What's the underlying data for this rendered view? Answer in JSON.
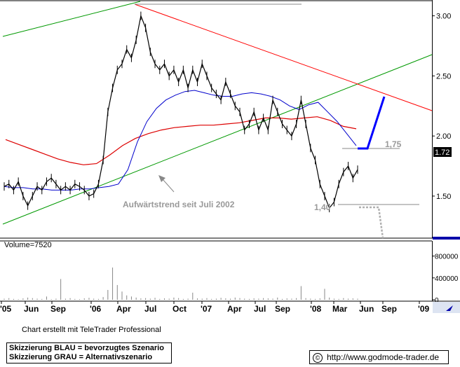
{
  "chart_data": {
    "type": "line",
    "price_axis": {
      "ticks": [
        "1.50",
        "2.00",
        "2.50",
        "3.00"
      ],
      "min": 1.15,
      "max": 3.12
    },
    "volume_label": "Volume=7520",
    "volume_axis": {
      "ticks": [
        "0",
        "400000",
        "800000"
      ],
      "max": 1000000
    },
    "x_tick_labels": [
      "'05",
      "Jun",
      "Sep",
      "'06",
      "Apr",
      "Jul",
      "Oct",
      "'07",
      "Apr",
      "Jul",
      "Sep",
      "'08",
      "Mar",
      "Jun",
      "Sep",
      "'09"
    ],
    "annotations": {
      "trend_text": "Aufwärtstrend seit Juli 2002",
      "level_high": "1,75",
      "level_low": "1,40",
      "current_price": "1.72"
    },
    "price_series": [
      1.58,
      1.6,
      1.55,
      1.62,
      1.5,
      1.42,
      1.5,
      1.58,
      1.55,
      1.62,
      1.65,
      1.6,
      1.55,
      1.58,
      1.55,
      1.6,
      1.58,
      1.55,
      1.5,
      1.52,
      1.6,
      1.8,
      2.2,
      2.4,
      2.55,
      2.6,
      2.72,
      2.65,
      2.8,
      3.0,
      2.9,
      2.7,
      2.6,
      2.55,
      2.6,
      2.5,
      2.55,
      2.45,
      2.55,
      2.4,
      2.55,
      2.45,
      2.6,
      2.5,
      2.4,
      2.35,
      2.3,
      2.45,
      2.35,
      2.25,
      2.2,
      2.05,
      2.1,
      2.2,
      2.05,
      2.15,
      2.05,
      2.3,
      2.2,
      2.1,
      2.05,
      2.0,
      2.1,
      2.3,
      2.1,
      1.9,
      1.8,
      1.6,
      1.5,
      1.4,
      1.45,
      1.6,
      1.7,
      1.75,
      1.65,
      1.72
    ],
    "ma_blue": [
      1.58,
      1.57,
      1.57,
      1.56,
      1.56,
      1.55,
      1.55,
      1.55,
      1.56,
      1.56,
      1.57,
      1.58,
      1.6,
      1.72,
      1.95,
      2.12,
      2.23,
      2.3,
      2.34,
      2.37,
      2.38,
      2.36,
      2.34,
      2.33,
      2.33,
      2.35,
      2.36,
      2.35,
      2.33,
      2.3,
      2.25,
      2.22,
      2.26,
      2.28,
      2.2,
      2.12,
      2.02,
      1.92
    ],
    "ma_red": [
      1.97,
      1.93,
      1.89,
      1.85,
      1.81,
      1.78,
      1.76,
      1.77,
      1.84,
      1.92,
      1.98,
      2.02,
      2.05,
      2.07,
      2.08,
      2.09,
      2.09,
      2.1,
      2.11,
      2.13,
      2.15,
      2.15,
      2.14,
      2.15,
      2.16,
      2.13,
      2.08,
      2.06
    ],
    "volume_series": [
      20,
      30,
      15,
      10,
      25,
      40,
      30,
      20,
      15,
      60,
      10,
      20,
      380,
      20,
      30,
      15,
      10,
      25,
      35,
      20,
      15,
      50,
      180,
      590,
      270,
      150,
      80,
      60,
      40,
      25,
      30,
      20,
      35,
      15,
      25,
      20,
      40,
      30,
      15,
      20,
      130,
      25,
      20,
      30,
      15,
      20,
      35,
      25,
      20,
      40,
      30,
      20,
      15,
      25,
      20,
      30,
      25,
      20,
      40,
      15,
      25,
      20,
      30,
      250,
      30,
      20,
      15,
      25,
      200,
      40,
      20,
      15,
      30,
      20,
      25,
      20
    ],
    "scenario_blue": [
      [
        "2008-05",
        1.75
      ],
      [
        "2008-06",
        1.75
      ],
      [
        "2008-08",
        2.15
      ]
    ],
    "scenario_grey": [
      [
        "2008-05",
        1.4
      ],
      [
        "2008-06",
        1.4
      ],
      [
        "2008-08",
        1.1
      ]
    ]
  },
  "colors": {
    "uptrend": "#009900",
    "downtrend": "#ff0000",
    "ma_short": "#0000cc",
    "ma_long": "#dd0000",
    "scenario_blue": "#0000ff",
    "scenario_grey": "#b0b0b0",
    "price": "#000000"
  },
  "footer": {
    "credit": "Chart erstellt mit TeleTrader Professional",
    "legend_blue": "Skizzierung BLAU = bevorzugtes Szenario",
    "legend_grey": "Skizzierung GRAU = Alternativszenario",
    "url": "http://www.godmode-trader.de"
  }
}
